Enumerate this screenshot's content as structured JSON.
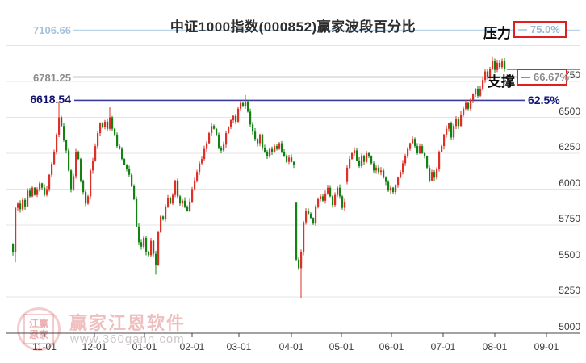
{
  "title": "中证1000指数(000852)赢家波段百分比",
  "levels": [
    {
      "name": "pressure",
      "price_label": "7106.66",
      "price": 7106.66,
      "pct": "75.0%",
      "label_color": "#a4c2de",
      "line_color": "#b9d3e9"
    },
    {
      "name": "support",
      "price_label": "6781.25",
      "price": 6781.25,
      "pct": "66.67%",
      "label_color": "#8c8c8c",
      "line_color": "#8f8f8f"
    },
    {
      "name": "mid",
      "price_label": "6618.54",
      "price": 6618.54,
      "pct": "62.5%",
      "label_color": "#10106e",
      "line_color": "#3b3b9b"
    }
  ],
  "annotations": {
    "pressure_label": "压力",
    "support_label": "支撑"
  },
  "watermark": {
    "seal_top": "江赢",
    "seal_bottom": "恩家",
    "line1": "赢家江恩软件",
    "line2": "www.360gann.com"
  },
  "chart_data": {
    "type": "candlestick",
    "title": "中证1000指数(000852)赢家波段百分比",
    "x_labels": [
      "11-01",
      "12-01",
      "01-01",
      "02-01",
      "03-01",
      "04-01",
      "05-01",
      "06-01",
      "07-01",
      "08-01",
      "09-01"
    ],
    "y_ticks": [
      6750,
      6500,
      6250,
      6000,
      5750,
      5500,
      5250,
      5000
    ],
    "grid_prices": [
      7000,
      6750,
      6500,
      6250,
      6000,
      5750,
      5500,
      5250
    ],
    "ylim": [
      5000,
      7150
    ],
    "up_color": "#dc3028",
    "down_color": "#148114",
    "first_open": 5620,
    "closes": [
      5560,
      5870,
      5900,
      5860,
      5925,
      5880,
      5990,
      5950,
      6010,
      5960,
      6000,
      6040,
      6010,
      5960,
      6000,
      6100,
      6175,
      6260,
      6380,
      6500,
      6440,
      6340,
      6270,
      6130,
      6000,
      6090,
      6260,
      6210,
      6060,
      5980,
      5900,
      5950,
      6130,
      6200,
      6300,
      6390,
      6460,
      6430,
      6470,
      6420,
      6500,
      6420,
      6380,
      6300,
      6280,
      6210,
      6170,
      6140,
      6100,
      6020,
      5930,
      5740,
      5630,
      5600,
      5660,
      5560,
      5540,
      5640,
      5550,
      5470,
      5700,
      5810,
      5790,
      5880,
      5940,
      5900,
      5960,
      6060,
      5950,
      5900,
      5920,
      5880,
      5850,
      5910,
      6000,
      6060,
      6120,
      6180,
      6210,
      6280,
      6320,
      6390,
      6440,
      6420,
      6380,
      6290,
      6270,
      6310,
      6390,
      6430,
      6480,
      6510,
      6470,
      6560,
      6600,
      6580,
      6610,
      6540,
      6450,
      6400,
      6350,
      6320,
      6380,
      6290,
      6260,
      6230,
      6280,
      6260,
      6300,
      6280,
      6320,
      6260,
      6230,
      6190,
      6220,
      6190,
      6170,
      5510,
      5450,
      5560,
      5770,
      5850,
      5830,
      5800,
      5760,
      5880,
      5930,
      5950,
      5920,
      5970,
      6010,
      5950,
      5890,
      5960,
      6010,
      5950,
      5870,
      5910,
      6150,
      6210,
      6250,
      6270,
      6200,
      6160,
      6230,
      6190,
      6250,
      6230,
      6180,
      6130,
      6150,
      6120,
      6130,
      6080,
      6050,
      5990,
      6010,
      5980,
      6030,
      6080,
      6120,
      6180,
      6230,
      6280,
      6320,
      6350,
      6300,
      6250,
      6300,
      6250,
      6230,
      6150,
      6060,
      6120,
      6080,
      6140,
      6260,
      6300,
      6380,
      6420,
      6460,
      6360,
      6440,
      6490,
      6440,
      6520,
      6560,
      6600,
      6560,
      6620,
      6660,
      6700,
      6650,
      6700,
      6760,
      6820,
      6780,
      6840,
      6890,
      6830,
      6880,
      6850,
      6890,
      6834
    ],
    "open_overrides": {
      "117": 5905,
      "138": 6050
    },
    "high_overrides": {
      "19": 6610,
      "40": 6570,
      "96": 6655,
      "198": 6920
    },
    "low_overrides": {
      "1": 5490,
      "59": 5405,
      "119": 5240
    },
    "last_price_line": 6834,
    "pressure_level": {
      "price": 7106.66,
      "pct": "75.0%"
    },
    "support_level": {
      "price": 6781.25,
      "pct": "66.67%"
    },
    "mid_level": {
      "price": 6618.54,
      "pct": "62.5%"
    }
  }
}
